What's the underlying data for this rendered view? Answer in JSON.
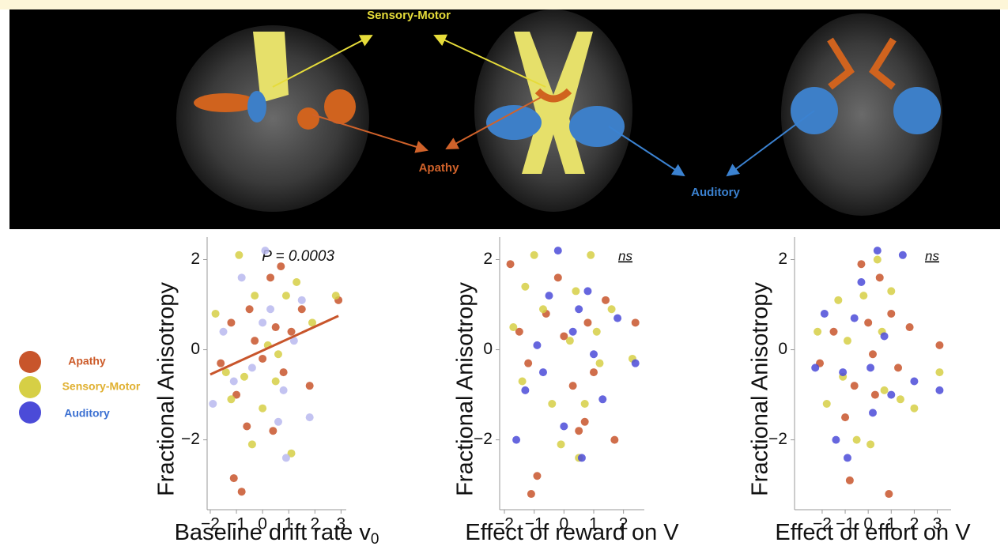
{
  "brain_labels": {
    "sensory_motor": "Sensory-Motor",
    "apathy": "Apathy",
    "auditory": "Auditory"
  },
  "chart_data": [
    {
      "type": "scatter",
      "ylabel": "Fractional Anisotropy",
      "xlabel": "Baseline drift rate v",
      "xlabel_subscript": "0",
      "annotation": "P = 0.0003",
      "xlim": [
        -2.12,
        3.2
      ],
      "ylim": [
        -3.55,
        2.5
      ],
      "xticks": [
        {
          "value": -2,
          "label": "−2"
        },
        {
          "value": -1,
          "label": "−1"
        },
        0,
        1,
        2,
        3
      ],
      "yticks": [
        {
          "value": -2,
          "label": "−2"
        },
        0,
        2
      ],
      "fit": {
        "x": [
          -2,
          2.9
        ],
        "y": [
          -0.55,
          0.75
        ],
        "color": "#c8552b"
      },
      "series": [
        {
          "name": "Apathy",
          "color": "#c8552b",
          "x": [
            -1.6,
            -1.2,
            -1,
            -0.8,
            -1.1,
            -0.5,
            0,
            0.3,
            0.4,
            0.7,
            0.8,
            1.1,
            1.8,
            2.9,
            -0.3,
            0.5,
            1.5,
            -0.6
          ],
          "values": [
            -0.3,
            0.6,
            -1,
            -3.15,
            -2.85,
            0.9,
            -0.2,
            1.6,
            -1.8,
            1.85,
            -0.5,
            0.4,
            -0.8,
            1.1,
            0.2,
            0.5,
            0.9,
            -1.7
          ]
        },
        {
          "name": "Sensory-Motor",
          "color": "#d6cf45",
          "x": [
            -1.8,
            -1.4,
            -0.9,
            -0.7,
            -0.3,
            0,
            0.2,
            0.5,
            0.9,
            1.1,
            1.3,
            1.9,
            -0.4,
            0.6,
            2.8,
            -1.2
          ],
          "values": [
            0.8,
            -0.5,
            2.1,
            -0.6,
            1.2,
            -1.3,
            0.1,
            -0.7,
            1.2,
            -2.3,
            1.5,
            0.6,
            -2.1,
            -0.1,
            1.2,
            -1.1
          ]
        },
        {
          "name": "Auditory",
          "color": "#b9b9ef",
          "x": [
            -1.9,
            -1.5,
            -0.8,
            -0.4,
            0.1,
            0.3,
            0.6,
            0.9,
            1.2,
            1.8,
            -1.1,
            0,
            0.8,
            1.5
          ],
          "values": [
            -1.2,
            0.4,
            1.6,
            -0.4,
            2.2,
            0.9,
            -1.6,
            -2.4,
            0.2,
            -1.5,
            -0.7,
            0.6,
            -0.9,
            1.1
          ]
        }
      ]
    },
    {
      "type": "scatter",
      "ylabel": "Fractional Anisotropy",
      "xlabel": "Effect of reward on V",
      "annotation": "ns",
      "xlim": [
        -2.16,
        2.7
      ],
      "ylim": [
        -3.55,
        2.5
      ],
      "xticks": [
        {
          "value": -2,
          "label": "−2"
        },
        {
          "value": -1,
          "label": "−1"
        },
        0,
        1,
        2
      ],
      "yticks": [
        {
          "value": -2,
          "label": "−2"
        },
        0,
        2
      ],
      "series": [
        {
          "name": "Apathy",
          "color": "#c8552b",
          "x": [
            -1.8,
            -1.5,
            -1.2,
            -0.9,
            -1.1,
            -0.6,
            -0.2,
            0,
            0.3,
            0.5,
            0.8,
            1,
            1.4,
            1.7,
            2.4,
            0.7
          ],
          "values": [
            1.9,
            0.4,
            -0.3,
            -2.8,
            -3.2,
            0.8,
            1.6,
            0.3,
            -0.8,
            -1.8,
            0.6,
            -0.5,
            1.1,
            -2,
            0.6,
            -1.6
          ]
        },
        {
          "name": "Sensory-Motor",
          "color": "#d6cf45",
          "x": [
            -1.7,
            -1.4,
            -1,
            -0.7,
            -0.4,
            -0.1,
            0.2,
            0.5,
            0.7,
            0.9,
            1.2,
            1.6,
            2.3,
            -1.3,
            0.4,
            1.1
          ],
          "values": [
            0.5,
            -0.7,
            2.1,
            0.9,
            -1.2,
            -2.1,
            0.2,
            -2.4,
            -1.2,
            2.1,
            -0.3,
            0.9,
            -0.2,
            1.4,
            1.3,
            0.4
          ]
        },
        {
          "name": "Auditory",
          "color": "#4b4bd8",
          "x": [
            -1.6,
            -1.3,
            -0.9,
            -0.5,
            -0.2,
            0,
            0.3,
            0.6,
            0.8,
            1,
            1.3,
            1.8,
            -0.7,
            0.5,
            2.4
          ],
          "values": [
            -2,
            -0.9,
            0.1,
            1.2,
            2.2,
            -1.7,
            0.4,
            -2.4,
            1.3,
            -0.1,
            -1.1,
            0.7,
            -0.5,
            0.9,
            -0.3
          ]
        }
      ]
    },
    {
      "type": "scatter",
      "ylabel": "Fractional Anisotropy",
      "xlabel": "Effect of effort on V",
      "annotation": "ns",
      "xlim": [
        -3.2,
        3.6
      ],
      "ylim": [
        -3.55,
        2.5
      ],
      "xticks": [
        {
          "value": -2,
          "label": "−2"
        },
        {
          "value": -1,
          "label": "−1"
        },
        0,
        1,
        2,
        3
      ],
      "yticks": [
        {
          "value": -2,
          "label": "−2"
        },
        0,
        2
      ],
      "series": [
        {
          "name": "Apathy",
          "color": "#c8552b",
          "x": [
            -2.1,
            -1.5,
            -1,
            -0.8,
            -0.3,
            0,
            0.3,
            0.5,
            0.9,
            1,
            1.3,
            1.8,
            3.1,
            -0.6,
            0.2
          ],
          "values": [
            -0.3,
            0.4,
            -1.5,
            -2.9,
            1.9,
            0.6,
            -1,
            1.6,
            -3.2,
            0.8,
            -0.4,
            0.5,
            0.1,
            -0.8,
            -0.1
          ]
        },
        {
          "name": "Sensory-Motor",
          "color": "#d6cf45",
          "x": [
            -2.2,
            -1.8,
            -1.3,
            -0.9,
            -0.5,
            -0.2,
            0.1,
            0.4,
            0.7,
            1,
            1.4,
            2,
            3.1,
            -1.1,
            0.6
          ],
          "values": [
            0.4,
            -1.2,
            1.1,
            0.2,
            -2,
            1.2,
            -2.1,
            2,
            -0.9,
            1.3,
            -1.1,
            -1.3,
            -0.5,
            -0.6,
            0.4
          ]
        },
        {
          "name": "Auditory",
          "color": "#4b4bd8",
          "x": [
            -2.3,
            -1.9,
            -1.4,
            -1.1,
            -0.9,
            -0.6,
            -0.3,
            0.1,
            0.4,
            0.7,
            1,
            1.5,
            2,
            3.1,
            0.2
          ],
          "values": [
            -0.4,
            0.8,
            -2,
            -0.5,
            -2.4,
            0.7,
            1.5,
            -0.4,
            2.2,
            0.3,
            -1,
            2.1,
            -0.7,
            -0.9,
            -1.4
          ]
        }
      ]
    }
  ]
}
